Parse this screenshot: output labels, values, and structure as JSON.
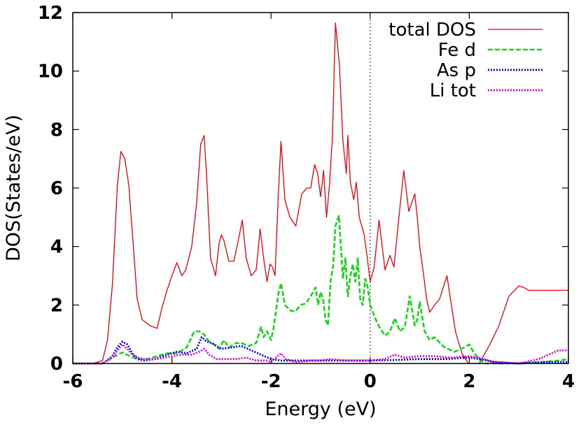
{
  "chart_data": {
    "type": "line",
    "title": "",
    "xlabel": "Energy (eV)",
    "ylabel": "DOS(States/eV)",
    "xlim": [
      -6,
      4
    ],
    "ylim": [
      0,
      12
    ],
    "xticks": [
      -6,
      -4,
      -2,
      0,
      2,
      4
    ],
    "yticks": [
      0,
      2,
      4,
      6,
      8,
      10,
      12
    ],
    "xtick_labels": [
      "-6",
      "-4",
      "-2",
      "0",
      "2",
      "4"
    ],
    "ytick_labels": [
      "0",
      "2",
      "4",
      "6",
      "8",
      "10",
      "12"
    ],
    "fermi_level": 0,
    "legend_position": "top-right",
    "grid": false,
    "series": [
      {
        "name": "total DOS",
        "color": "#e8000b",
        "dash": "solid",
        "x": [
          -6.0,
          -5.6,
          -5.4,
          -5.3,
          -5.2,
          -5.1,
          -5.03,
          -4.95,
          -4.87,
          -4.8,
          -4.7,
          -4.6,
          -4.45,
          -4.3,
          -4.2,
          -4.1,
          -4.0,
          -3.9,
          -3.8,
          -3.72,
          -3.6,
          -3.5,
          -3.42,
          -3.35,
          -3.3,
          -3.22,
          -3.12,
          -3.05,
          -3.0,
          -2.95,
          -2.85,
          -2.75,
          -2.65,
          -2.58,
          -2.5,
          -2.4,
          -2.3,
          -2.22,
          -2.15,
          -2.08,
          -2.02,
          -1.97,
          -1.92,
          -1.86,
          -1.8,
          -1.72,
          -1.62,
          -1.5,
          -1.38,
          -1.28,
          -1.2,
          -1.12,
          -1.06,
          -1.0,
          -0.94,
          -0.88,
          -0.82,
          -0.76,
          -0.7,
          -0.62,
          -0.55,
          -0.48,
          -0.45,
          -0.4,
          -0.33,
          -0.28,
          -0.22,
          -0.17,
          -0.12,
          -0.05,
          0.0,
          0.08,
          0.18,
          0.3,
          0.4,
          0.48,
          0.58,
          0.68,
          0.78,
          0.9,
          0.95,
          1.0,
          1.08,
          1.14,
          1.2,
          1.3,
          1.4,
          1.55,
          1.72,
          1.85,
          1.98,
          2.07,
          2.12,
          2.2,
          2.4,
          2.6,
          2.8,
          3.0,
          3.1,
          3.2,
          3.4,
          3.6,
          3.72,
          3.85,
          4.0
        ],
        "y": [
          0.0,
          0.0,
          0.1,
          0.8,
          2.7,
          6.1,
          7.25,
          7.0,
          6.1,
          4.5,
          2.2,
          1.5,
          1.3,
          1.2,
          1.9,
          2.5,
          3.0,
          3.45,
          3.0,
          3.2,
          4.0,
          5.5,
          7.5,
          7.8,
          6.4,
          3.6,
          3.0,
          4.1,
          4.4,
          4.2,
          3.5,
          3.5,
          4.3,
          4.9,
          3.6,
          3.0,
          3.2,
          4.6,
          3.6,
          2.8,
          3.4,
          3.3,
          3.0,
          5.5,
          7.6,
          5.6,
          5.0,
          4.7,
          5.8,
          6.0,
          6.0,
          6.8,
          6.5,
          5.7,
          6.6,
          5.0,
          6.1,
          7.8,
          11.65,
          10.2,
          7.6,
          6.5,
          7.8,
          6.2,
          5.6,
          6.2,
          5.0,
          4.7,
          4.4,
          3.5,
          2.8,
          3.3,
          4.9,
          3.2,
          3.7,
          3.3,
          5.0,
          6.6,
          5.2,
          5.8,
          5.0,
          4.0,
          3.0,
          2.2,
          1.75,
          2.0,
          2.2,
          3.0,
          1.1,
          0.35,
          0.0,
          0.0,
          0.0,
          0.0,
          0.6,
          1.3,
          2.3,
          2.65,
          2.6,
          2.5,
          2.5,
          2.5,
          2.5,
          2.5,
          2.5
        ]
      },
      {
        "name": "Fe d",
        "color": "#17d41c",
        "dash": "dashed",
        "x": [
          -6.0,
          -5.4,
          -5.2,
          -5.0,
          -4.85,
          -4.7,
          -4.5,
          -4.3,
          -4.1,
          -3.9,
          -3.7,
          -3.55,
          -3.45,
          -3.35,
          -3.25,
          -3.15,
          -3.05,
          -2.95,
          -2.85,
          -2.7,
          -2.6,
          -2.45,
          -2.3,
          -2.2,
          -2.15,
          -2.08,
          -2.0,
          -1.95,
          -1.9,
          -1.85,
          -1.8,
          -1.72,
          -1.6,
          -1.5,
          -1.4,
          -1.3,
          -1.2,
          -1.1,
          -1.05,
          -1.0,
          -0.95,
          -0.9,
          -0.85,
          -0.8,
          -0.75,
          -0.7,
          -0.63,
          -0.55,
          -0.5,
          -0.45,
          -0.4,
          -0.35,
          -0.3,
          -0.25,
          -0.2,
          -0.15,
          -0.1,
          -0.05,
          0.0,
          0.1,
          0.2,
          0.3,
          0.4,
          0.5,
          0.6,
          0.7,
          0.8,
          0.9,
          0.95,
          1.0,
          1.1,
          1.2,
          1.3,
          1.5,
          1.7,
          1.9,
          2.0,
          2.05,
          2.1,
          2.2,
          2.3,
          2.5,
          3.0,
          3.5,
          3.8,
          4.0
        ],
        "y": [
          0.0,
          0.0,
          0.2,
          0.38,
          0.25,
          0.15,
          0.15,
          0.25,
          0.35,
          0.35,
          0.55,
          1.1,
          1.1,
          1.0,
          0.75,
          0.65,
          0.5,
          0.8,
          0.55,
          0.7,
          0.7,
          0.6,
          0.7,
          1.25,
          0.9,
          1.1,
          0.8,
          1.2,
          1.8,
          2.4,
          2.75,
          2.0,
          1.8,
          1.8,
          2.0,
          2.05,
          2.3,
          2.6,
          2.0,
          2.45,
          2.2,
          1.5,
          1.3,
          2.8,
          3.3,
          4.7,
          5.05,
          2.9,
          3.6,
          2.3,
          3.0,
          3.4,
          2.8,
          3.6,
          2.2,
          2.0,
          2.9,
          2.6,
          2.0,
          1.55,
          1.2,
          0.95,
          1.1,
          1.55,
          1.1,
          1.25,
          2.3,
          1.3,
          1.5,
          2.1,
          1.1,
          0.8,
          0.9,
          0.55,
          0.4,
          0.55,
          0.65,
          0.5,
          0.35,
          0.15,
          0.0,
          0.0,
          0.0,
          0.05,
          0.1,
          0.15
        ]
      },
      {
        "name": "As p",
        "color": "#0000e8",
        "dash": "dotted",
        "x": [
          -6.0,
          -5.4,
          -5.2,
          -5.1,
          -5.0,
          -4.9,
          -4.8,
          -4.7,
          -4.55,
          -4.35,
          -4.1,
          -3.9,
          -3.7,
          -3.5,
          -3.4,
          -3.3,
          -3.2,
          -3.0,
          -2.8,
          -2.6,
          -2.4,
          -2.2,
          -2.0,
          -1.8,
          -1.5,
          -1.0,
          -0.5,
          0.0,
          0.5,
          1.0,
          1.5,
          2.0,
          2.2,
          2.5,
          3.0,
          3.5,
          4.0
        ],
        "y": [
          0.0,
          0.0,
          0.25,
          0.55,
          0.75,
          0.65,
          0.35,
          0.15,
          0.1,
          0.15,
          0.3,
          0.4,
          0.35,
          0.5,
          0.9,
          0.75,
          0.7,
          0.5,
          0.55,
          0.6,
          0.45,
          0.3,
          0.15,
          0.1,
          0.1,
          0.1,
          0.1,
          0.1,
          0.12,
          0.15,
          0.15,
          0.2,
          0.15,
          0.05,
          0.0,
          0.05,
          0.05
        ]
      },
      {
        "name": "Li  tot",
        "color": "#e000e0",
        "dash": "dotted",
        "x": [
          -6.0,
          -5.4,
          -5.2,
          -5.1,
          -5.0,
          -4.9,
          -4.8,
          -4.6,
          -4.3,
          -4.0,
          -3.8,
          -3.6,
          -3.45,
          -3.35,
          -3.25,
          -3.1,
          -2.9,
          -2.7,
          -2.5,
          -2.3,
          -2.1,
          -2.0,
          -1.9,
          -1.8,
          -1.7,
          -1.5,
          -1.2,
          -1.0,
          -0.8,
          -0.5,
          -0.3,
          0.0,
          0.3,
          0.5,
          0.7,
          1.0,
          1.3,
          1.6,
          2.0,
          2.2,
          2.5,
          3.0,
          3.4,
          3.6,
          3.8,
          4.0
        ],
        "y": [
          0.0,
          0.0,
          0.2,
          0.45,
          0.65,
          0.5,
          0.3,
          0.15,
          0.15,
          0.25,
          0.3,
          0.3,
          0.4,
          0.5,
          0.3,
          0.15,
          0.15,
          0.15,
          0.2,
          0.1,
          0.1,
          0.05,
          0.2,
          0.35,
          0.15,
          0.05,
          0.1,
          0.1,
          0.15,
          0.1,
          0.1,
          0.1,
          0.15,
          0.3,
          0.2,
          0.25,
          0.25,
          0.2,
          0.25,
          0.2,
          0.05,
          0.0,
          0.15,
          0.3,
          0.45,
          0.45
        ]
      }
    ]
  }
}
